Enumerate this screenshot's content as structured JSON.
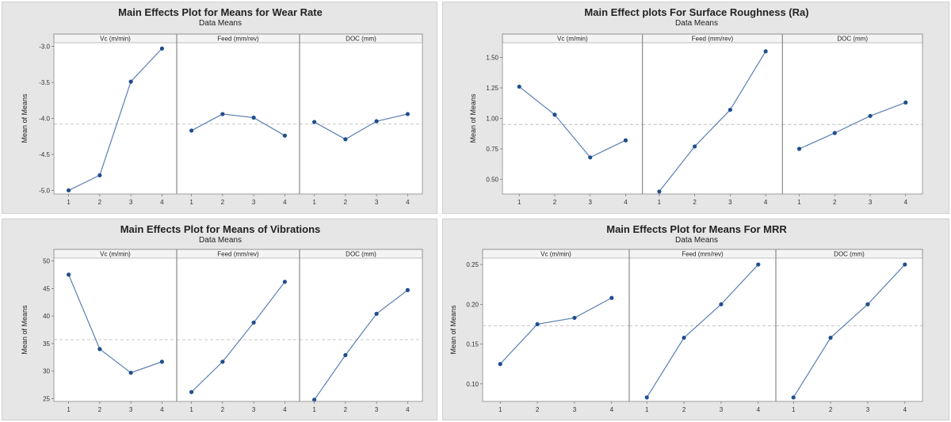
{
  "colors": {
    "background": "#e6e6e6",
    "panel": "#ffffff",
    "line": "#5b7fb3",
    "point": "#1f4e8c",
    "reference_line": "#b5b5b5"
  },
  "chart_data": [
    {
      "type": "line",
      "title": "Main Effects Plot for Means for Wear Rate",
      "subtitle": "Data Means",
      "ylabel": "Mean of Means",
      "ylim": [
        -5.05,
        -2.95
      ],
      "yticks": [
        "-5.0",
        "-4.5",
        "-4.0",
        "-3.5",
        "-3.0"
      ],
      "ytick_values": [
        -5.0,
        -4.5,
        -4.0,
        -3.5,
        -3.0
      ],
      "reference_mean": -4.08,
      "categories": [
        "1",
        "2",
        "3",
        "4"
      ],
      "series": [
        {
          "name": "Vc (m/min)",
          "values": [
            -5.0,
            -4.79,
            -3.49,
            -3.03
          ]
        },
        {
          "name": "Feed (mm/rev)",
          "values": [
            -4.17,
            -3.94,
            -3.99,
            -4.24
          ]
        },
        {
          "name": "DOC (mm)",
          "values": [
            -4.05,
            -4.29,
            -4.04,
            -3.94
          ]
        }
      ]
    },
    {
      "type": "line",
      "title": "Main Effect plots For Surface Roughness (Ra)",
      "subtitle": "Data Means",
      "ylabel": "Mean of Means",
      "ylim": [
        0.38,
        1.62
      ],
      "yticks": [
        "0.50",
        "0.75",
        "1.00",
        "1.25",
        "1.50"
      ],
      "ytick_values": [
        0.5,
        0.75,
        1.0,
        1.25,
        1.5
      ],
      "reference_mean": 0.95,
      "categories": [
        "1",
        "2",
        "3",
        "4"
      ],
      "series": [
        {
          "name": "Vc (m/min)",
          "values": [
            1.26,
            1.03,
            0.68,
            0.82
          ]
        },
        {
          "name": "Feed (mm/rev)",
          "values": [
            0.4,
            0.77,
            1.07,
            1.55
          ]
        },
        {
          "name": "DOC (mm)",
          "values": [
            0.75,
            0.88,
            1.02,
            1.13
          ]
        }
      ]
    },
    {
      "type": "line",
      "title": "Main Effects Plot for Means of Vibrations",
      "subtitle": "Data Means",
      "ylabel": "Mean of Means",
      "ylim": [
        24.5,
        50.5
      ],
      "yticks": [
        "25",
        "30",
        "35",
        "40",
        "45",
        "50"
      ],
      "ytick_values": [
        25,
        30,
        35,
        40,
        45,
        50
      ],
      "reference_mean": 35.7,
      "categories": [
        "1",
        "2",
        "3",
        "4"
      ],
      "series": [
        {
          "name": "Vc (m/min)",
          "values": [
            47.5,
            34.0,
            29.7,
            31.7
          ]
        },
        {
          "name": "Feed (mm/rev)",
          "values": [
            26.2,
            31.7,
            38.8,
            46.2
          ]
        },
        {
          "name": "DOC (mm)",
          "values": [
            24.8,
            32.9,
            40.4,
            44.7
          ]
        }
      ]
    },
    {
      "type": "line",
      "title": "Main Effects Plot for Means For MRR",
      "subtitle": "Data Means",
      "ylabel": "Mean of Means",
      "ylim": [
        0.078,
        0.258
      ],
      "yticks": [
        "0.10",
        "0.15",
        "0.20",
        "0.25"
      ],
      "ytick_values": [
        0.1,
        0.15,
        0.2,
        0.25
      ],
      "reference_mean": 0.173,
      "categories": [
        "1",
        "2",
        "3",
        "4"
      ],
      "series": [
        {
          "name": "Vc (m/min)",
          "values": [
            0.125,
            0.175,
            0.183,
            0.208
          ]
        },
        {
          "name": "Feed (mm/rev)",
          "values": [
            0.083,
            0.158,
            0.2,
            0.25
          ]
        },
        {
          "name": "DOC (mm)",
          "values": [
            0.083,
            0.158,
            0.2,
            0.25
          ]
        }
      ]
    }
  ]
}
